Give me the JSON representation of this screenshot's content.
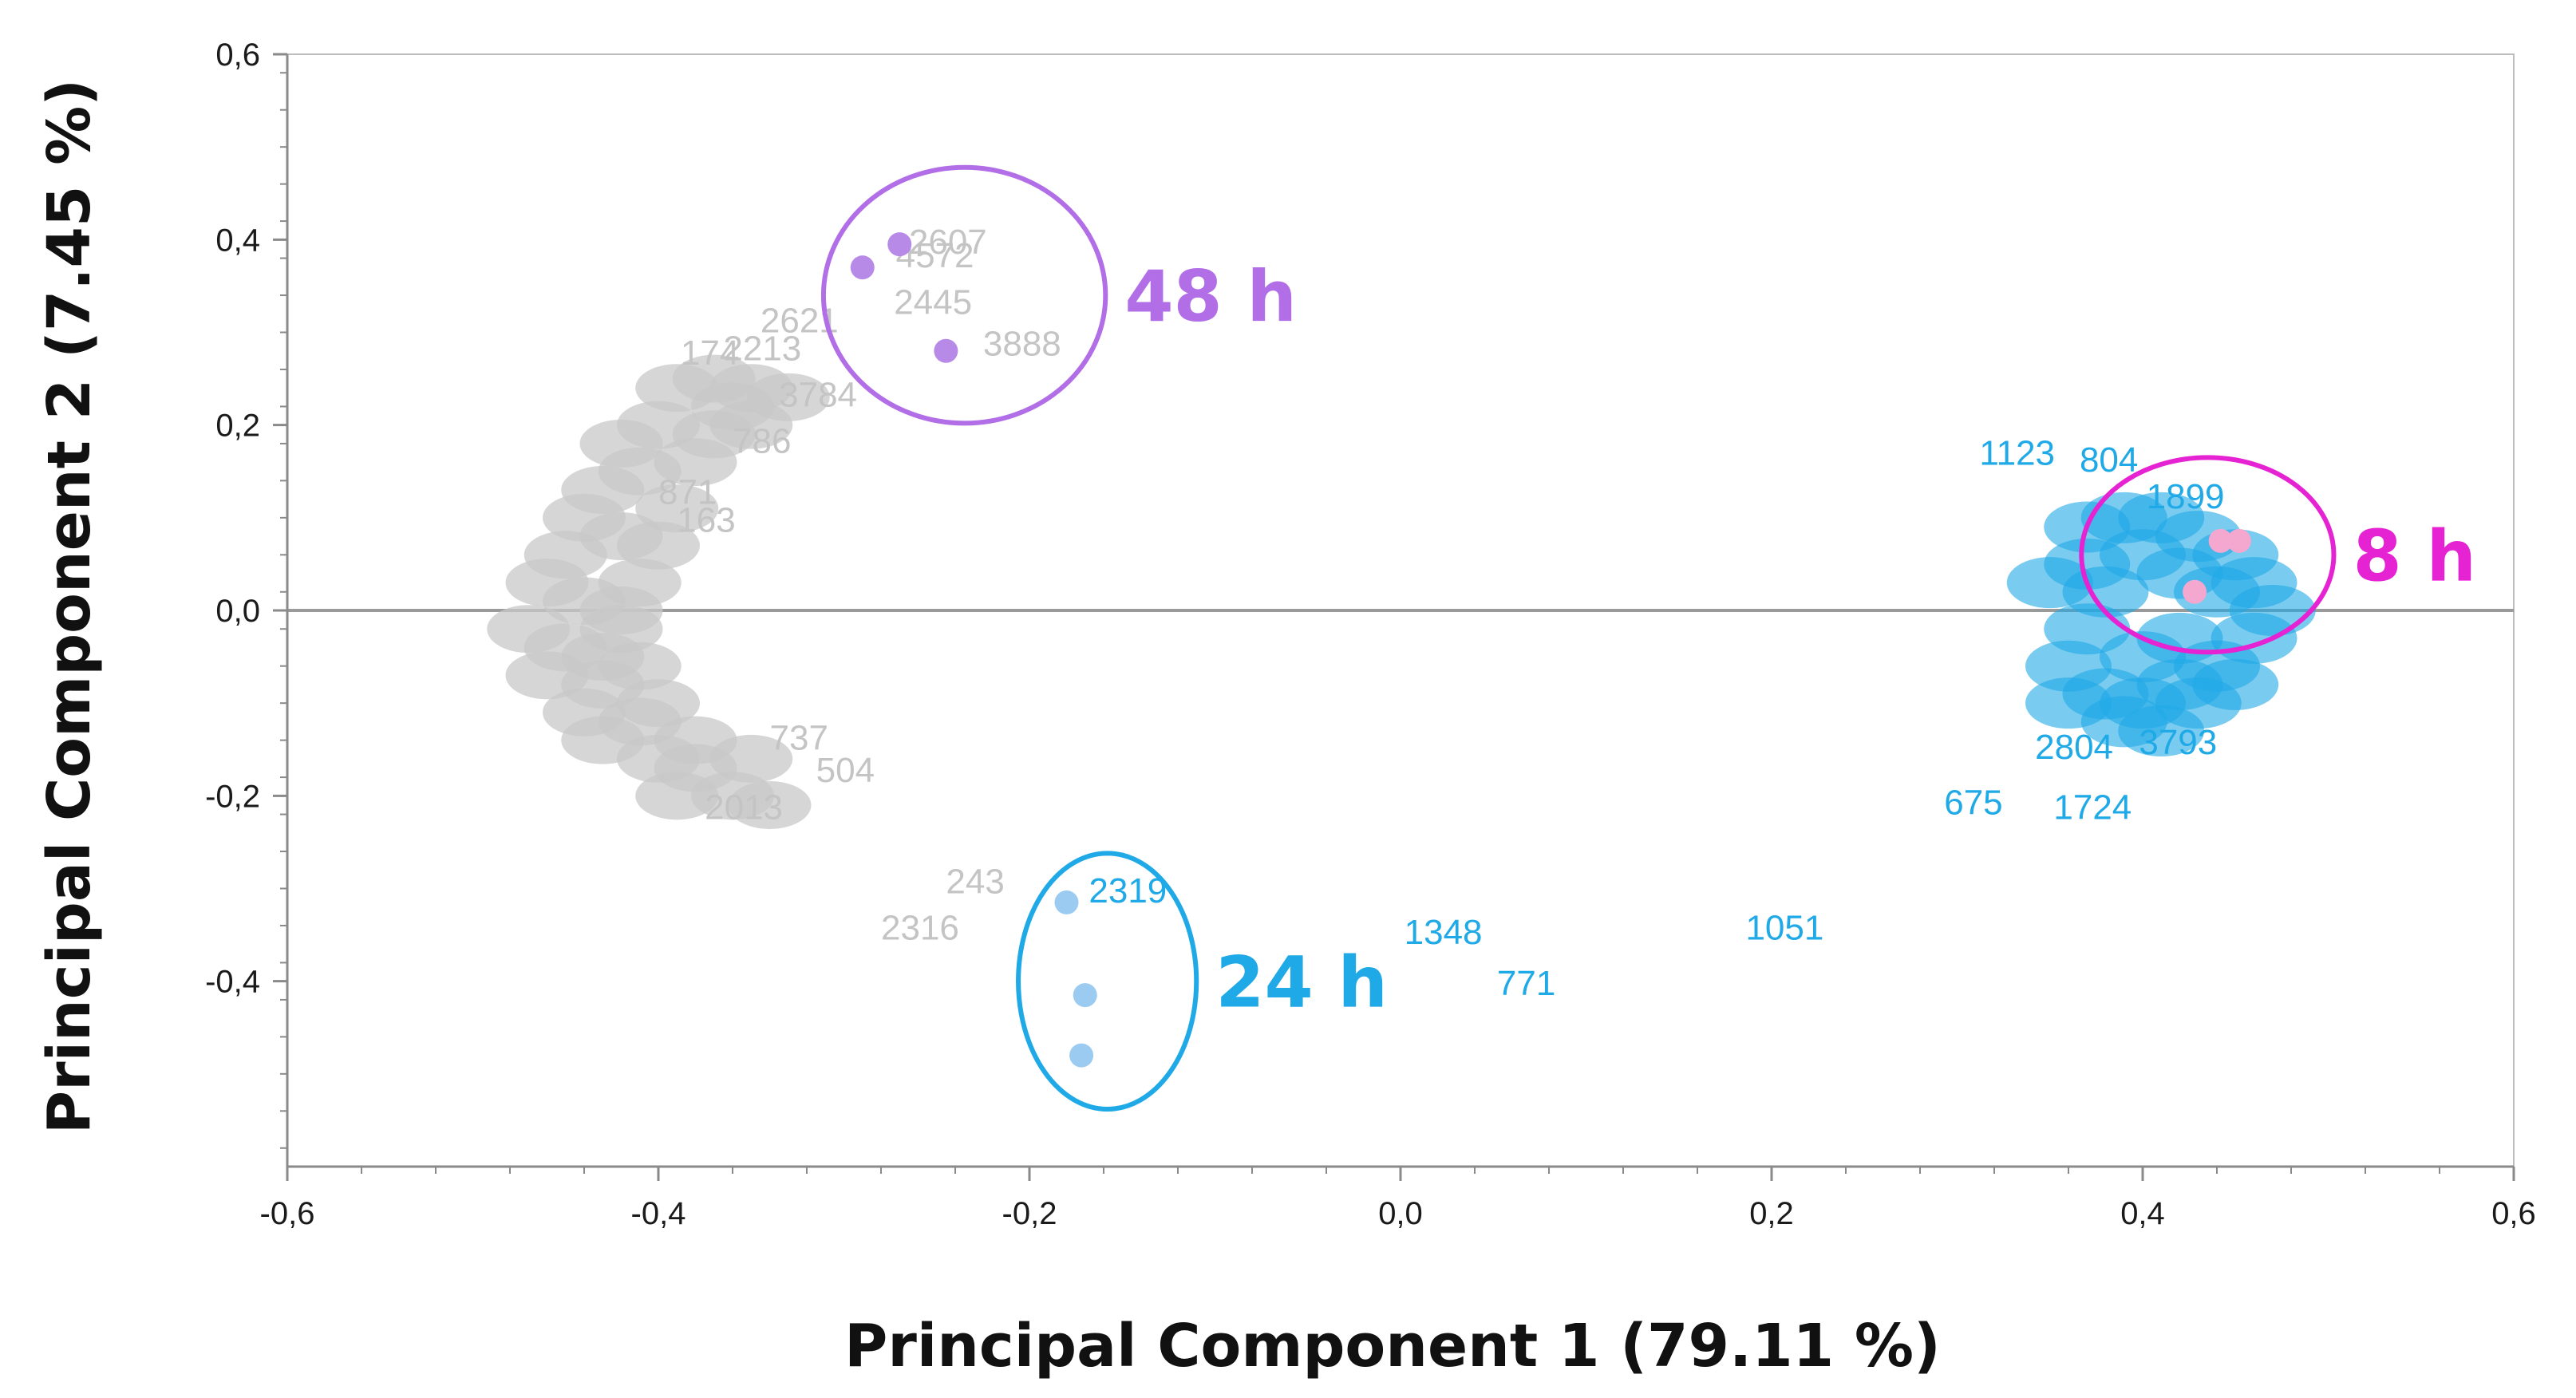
{
  "chart_data": {
    "type": "scatter",
    "xlabel": "Principal Component 1 (79.11 %)",
    "ylabel": "Principal Component 2 (7.45 %)",
    "xlim": [
      -0.6,
      0.6
    ],
    "ylim": [
      -0.6,
      0.6
    ],
    "x_ticks": [
      "-0,6",
      "-0,4",
      "-0,2",
      "0,0",
      "0,2",
      "0,4",
      "0,6"
    ],
    "y_ticks": [
      "0,6",
      "0,4",
      "0,2",
      "0,0",
      "-0,2",
      "-0,4"
    ],
    "grid": false,
    "zero_line": true,
    "colors": {
      "gray_labels": "#c8c8c8",
      "blue_labels": "#1fa9e6",
      "group_48h": "#b26ee6",
      "group_24h": "#1fa9e6",
      "group_8h": "#e623d2",
      "points_48h": "#b88ae8",
      "points_24h": "#9ccbf2",
      "points_8h": "#f4a8cf"
    },
    "series": [
      {
        "name": "48 h",
        "x": [
          -0.29,
          -0.27,
          -0.245
        ],
        "y": [
          0.37,
          0.395,
          0.28
        ]
      },
      {
        "name": "24 h",
        "x": [
          -0.18,
          -0.17,
          -0.172
        ],
        "y": [
          -0.315,
          -0.415,
          -0.48
        ]
      },
      {
        "name": "8 h",
        "x": [
          0.442,
          0.452,
          0.428
        ],
        "y": [
          0.075,
          0.075,
          0.02
        ]
      }
    ],
    "groups": [
      {
        "label": "48 h",
        "cx": -0.235,
        "cy": 0.34,
        "rx": 0.076,
        "ry": 0.138
      },
      {
        "label": "24 h",
        "cx": -0.158,
        "cy": -0.4,
        "rx": 0.048,
        "ry": 0.138
      },
      {
        "label": "8 h",
        "cx": 0.435,
        "cy": 0.06,
        "rx": 0.068,
        "ry": 0.105
      }
    ],
    "annotations": [
      {
        "text": "2607",
        "x": -0.265,
        "y": 0.385,
        "c": "gray"
      },
      {
        "text": "4572",
        "x": -0.272,
        "y": 0.37,
        "c": "gray"
      },
      {
        "text": "2445",
        "x": -0.273,
        "y": 0.32,
        "c": "gray"
      },
      {
        "text": "3888",
        "x": -0.225,
        "y": 0.275,
        "c": "gray"
      },
      {
        "text": "2621",
        "x": -0.345,
        "y": 0.3,
        "c": "gray"
      },
      {
        "text": "2213",
        "x": -0.365,
        "y": 0.27,
        "c": "gray"
      },
      {
        "text": "174",
        "x": -0.388,
        "y": 0.265,
        "c": "gray"
      },
      {
        "text": "3784",
        "x": -0.335,
        "y": 0.22,
        "c": "gray"
      },
      {
        "text": "786",
        "x": -0.36,
        "y": 0.17,
        "c": "gray"
      },
      {
        "text": "871",
        "x": -0.4,
        "y": 0.115,
        "c": "gray"
      },
      {
        "text": "163",
        "x": -0.39,
        "y": 0.085,
        "c": "gray"
      },
      {
        "text": "737",
        "x": -0.34,
        "y": -0.15,
        "c": "gray"
      },
      {
        "text": "504",
        "x": -0.315,
        "y": -0.185,
        "c": "gray"
      },
      {
        "text": "2013",
        "x": -0.375,
        "y": -0.225,
        "c": "gray"
      },
      {
        "text": "243",
        "x": -0.245,
        "y": -0.305,
        "c": "gray"
      },
      {
        "text": "2316",
        "x": -0.28,
        "y": -0.355,
        "c": "gray"
      },
      {
        "text": "2319",
        "x": -0.168,
        "y": -0.315,
        "c": "blue"
      },
      {
        "text": "1348",
        "x": 0.002,
        "y": -0.36,
        "c": "blue"
      },
      {
        "text": "771",
        "x": 0.052,
        "y": -0.415,
        "c": "blue"
      },
      {
        "text": "1051",
        "x": 0.186,
        "y": -0.355,
        "c": "blue"
      },
      {
        "text": "1123",
        "x": 0.312,
        "y": 0.157,
        "c": "blue"
      },
      {
        "text": "804",
        "x": 0.366,
        "y": 0.15,
        "c": "blue"
      },
      {
        "text": "1899",
        "x": 0.402,
        "y": 0.11,
        "c": "blue"
      },
      {
        "text": "2804",
        "x": 0.342,
        "y": -0.16,
        "c": "blue"
      },
      {
        "text": "3793",
        "x": 0.398,
        "y": -0.155,
        "c": "blue"
      },
      {
        "text": "675",
        "x": 0.293,
        "y": -0.22,
        "c": "blue"
      },
      {
        "text": "1724",
        "x": 0.352,
        "y": -0.225,
        "c": "blue"
      }
    ]
  }
}
